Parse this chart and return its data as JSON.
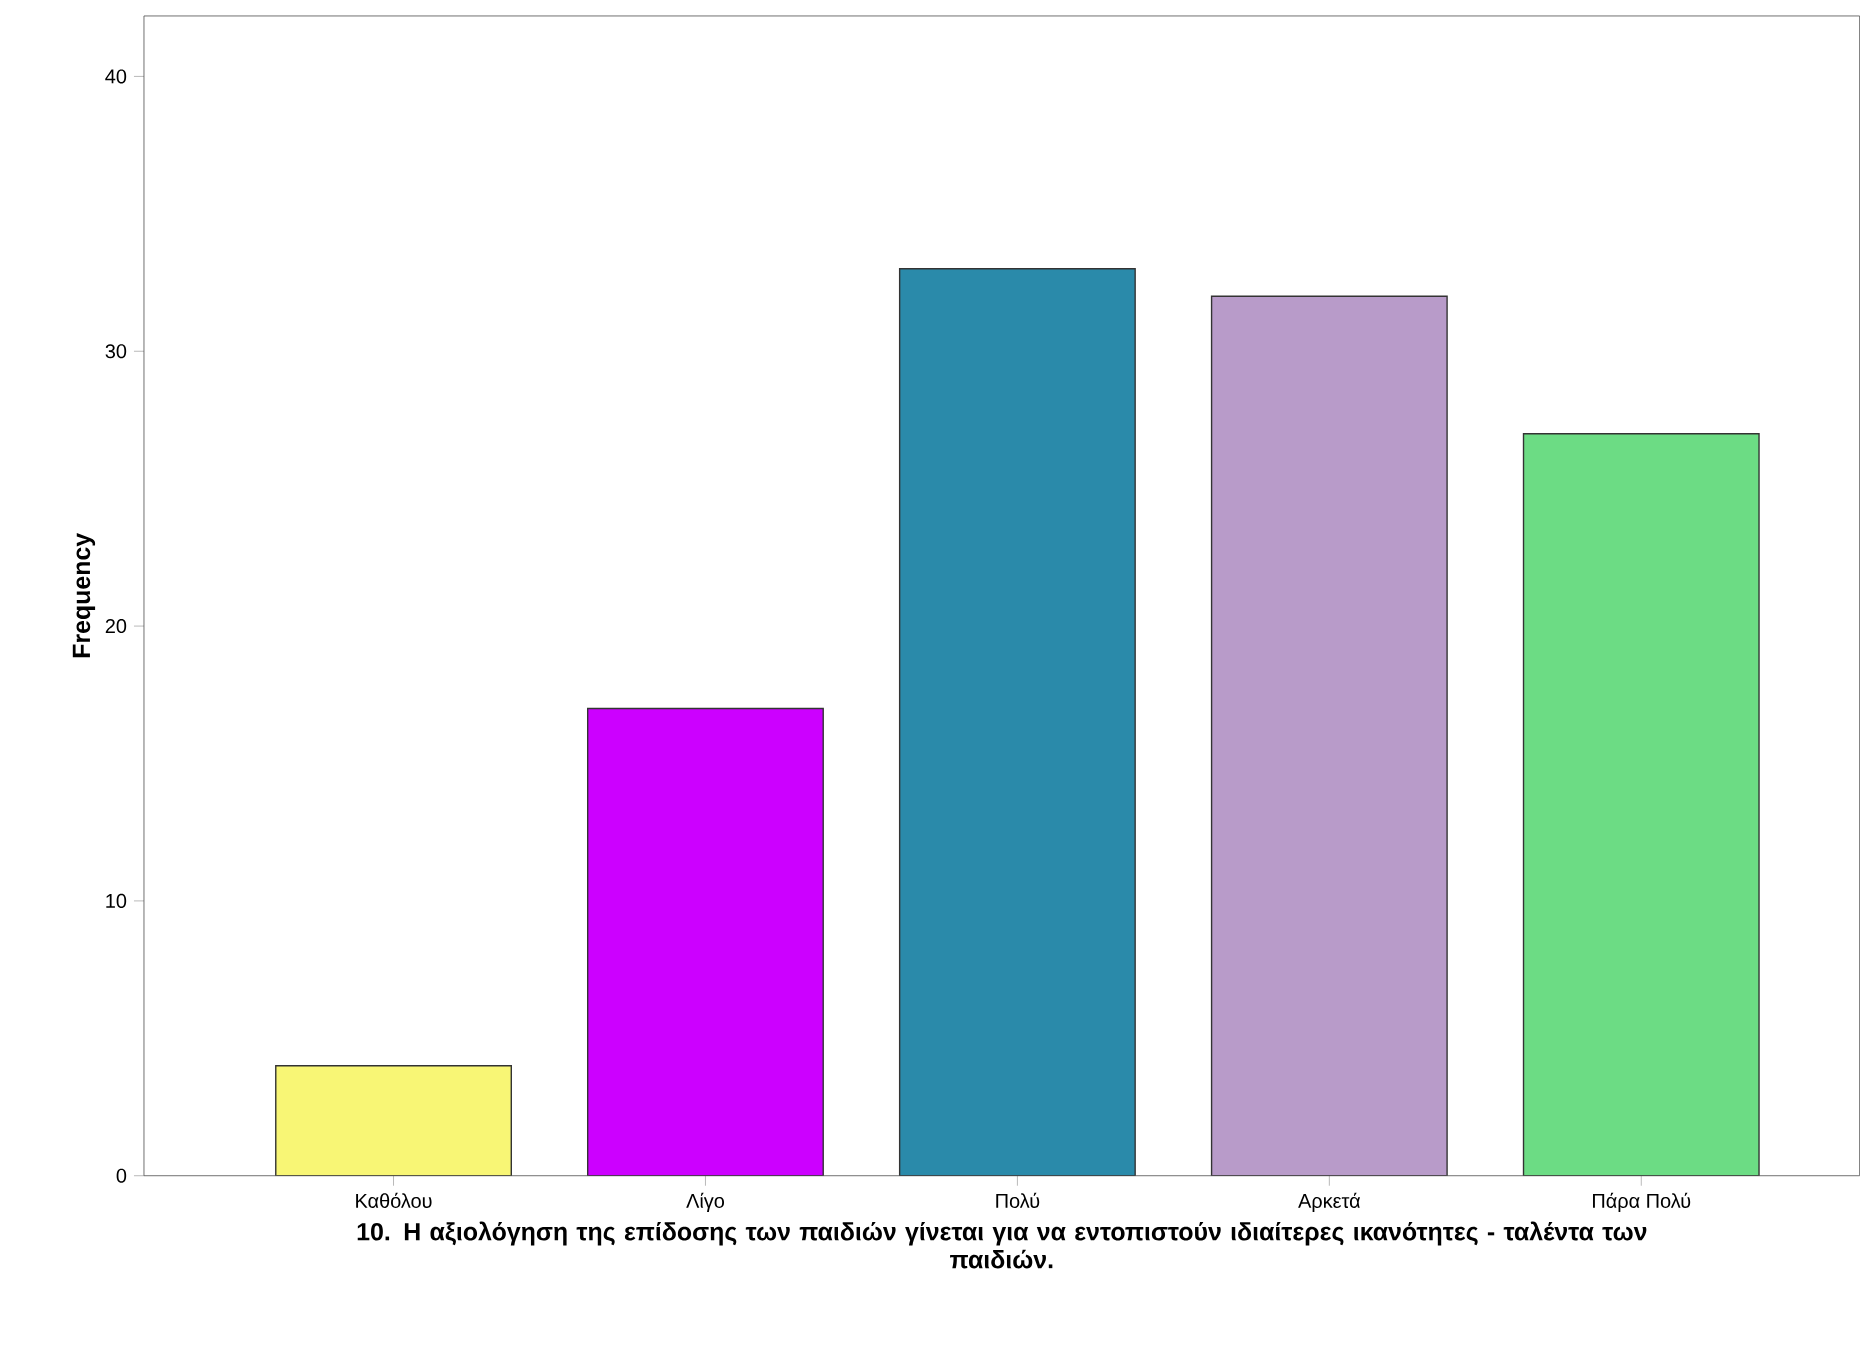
{
  "chart_data": {
    "type": "bar",
    "categories": [
      "Καθόλου",
      "Λίγο",
      "Πολύ",
      "Αρκετά",
      "Πάρα Πολύ"
    ],
    "values": [
      4,
      17,
      33,
      32,
      27
    ],
    "colors": [
      "#f8f675",
      "#cc00ff",
      "#2a8aaa",
      "#b89bc9",
      "#6cdc84"
    ],
    "xlabel": "10. Η αξιολόγηση της επίδοσης των παιδιών γίνεται για να εντοπιστούν ιδιαίτερες ικανότητες - ταλέντα των παιδιών.",
    "ylabel": "Frequency",
    "ylim": [
      0,
      42.2
    ],
    "yticks": [
      0,
      10,
      20,
      30,
      40
    ],
    "grid": false
  }
}
